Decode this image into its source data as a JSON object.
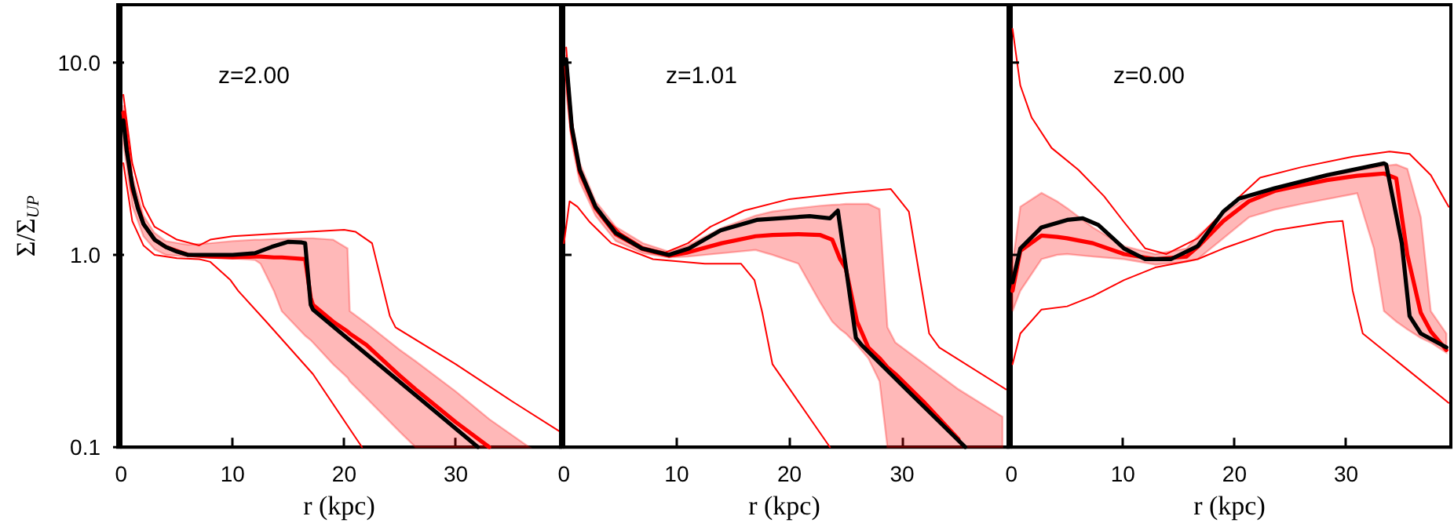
{
  "chart_data": [
    {
      "type": "line",
      "title": "z=2.00",
      "xlabel": "r (kpc)",
      "ylabel": "Σ/Σ$_{UP}$",
      "log": "y",
      "grid": false,
      "xlim": [
        -0.3,
        39.4
      ],
      "xticks": [
        0,
        10,
        20,
        30
      ],
      "ylim": [
        0.1,
        20
      ],
      "yticks": [
        0.1,
        {
          "value": 1,
          "label": "1.0"
        },
        {
          "value": 10,
          "label": "10.0"
        }
      ],
      "series": [
        {
          "color": "#ff0000",
          "x": [
            0.2,
            1,
            2,
            3,
            4,
            6,
            8,
            10,
            12,
            12.5,
            13.7,
            14.4,
            16.5,
            17,
            17.2,
            19,
            20.3,
            20.5,
            22,
            25,
            26.4,
            30,
            33,
            36.6
          ],
          "values": [
            5.5,
            2.2,
            1.45,
            1.2,
            1.1,
            1.0,
            0.98,
            0.97,
            0.98,
            0.98,
            0.97,
            0.97,
            0.95,
            0.6,
            0.55,
            0.45,
            0.4,
            0.39,
            0.34,
            0.235,
            0.2,
            0.135,
            0.1,
            null
          ],
          "lower": [
            3.8,
            1.8,
            1.25,
            1.07,
            1.0,
            0.98,
            0.97,
            0.96,
            0.94,
            0.9,
            0.65,
            0.51,
            0.38,
            0.36,
            0.35,
            0.27,
            0.23,
            0.22,
            0.18,
            0.12,
            0.1,
            0.1,
            0.1,
            0.1
          ],
          "upper": [
            6.0,
            2.6,
            1.6,
            1.3,
            1.18,
            1.13,
            1.15,
            1.18,
            1.2,
            1.2,
            1.21,
            1.21,
            1.22,
            1.22,
            1.22,
            1.2,
            1.08,
            0.51,
            0.44,
            0.32,
            0.28,
            0.195,
            0.14,
            0.1
          ]
        },
        {
          "color": "#000000",
          "x": [
            0.2,
            0.5,
            1,
            1.5,
            2,
            3,
            4,
            5,
            6,
            8,
            10,
            12,
            13.5,
            15,
            16.2,
            16.5,
            17,
            17.2,
            20,
            25,
            30,
            32
          ],
          "values": [
            5.0,
            3.5,
            2.3,
            1.75,
            1.45,
            1.2,
            1.1,
            1.04,
            1.0,
            1.0,
            1.0,
            1.02,
            1.1,
            1.17,
            1.16,
            1.15,
            0.55,
            0.52,
            0.38,
            0.218,
            0.125,
            0.1
          ]
        },
        {
          "color": "#ff0000",
          "x": [
            0.2,
            1,
            2,
            3,
            5,
            7,
            8,
            10,
            15,
            20,
            21,
            22.5,
            24.1,
            24.6,
            30,
            35,
            39.4
          ],
          "values": [
            6.8,
            3.0,
            1.8,
            1.4,
            1.2,
            1.12,
            1.2,
            1.25,
            1.3,
            1.35,
            1.32,
            1.15,
            0.48,
            0.42,
            0.27,
            0.174,
            0.12
          ]
        },
        {
          "color": "#ff0000",
          "x": [
            0.2,
            1,
            2,
            3,
            5,
            7,
            8,
            9.8,
            10.5,
            13,
            17.2,
            21.6
          ],
          "values": [
            3.0,
            1.5,
            1.12,
            1.0,
            0.96,
            0.95,
            0.92,
            0.74,
            0.65,
            0.45,
            0.24,
            0.1
          ]
        }
      ]
    },
    {
      "type": "line",
      "title": "z=1.01",
      "xlabel": "r (kpc)",
      "log": "y",
      "grid": false,
      "tick_labels": "x",
      "xlim": [
        -0.3,
        39.4
      ],
      "xticks": [
        0,
        10,
        20,
        30
      ],
      "ylim": [
        0.1,
        20
      ],
      "yticks": [
        0.1,
        1,
        10
      ],
      "series": [
        {
          "color": "#ff0000",
          "x": [
            0.2,
            0.7,
            1.4,
            2.8,
            4.6,
            7,
            9.3,
            11,
            14,
            17,
            18.5,
            20.8,
            22.7,
            23.8,
            24.5,
            25,
            26,
            27,
            28,
            28.7,
            29.4,
            32,
            35,
            38.9
          ],
          "values": [
            9.5,
            4.4,
            2.7,
            1.75,
            1.28,
            1.07,
            0.99,
            1.03,
            1.15,
            1.25,
            1.27,
            1.28,
            1.27,
            1.2,
            0.95,
            0.85,
            0.45,
            0.33,
            0.29,
            0.26,
            0.24,
            0.17,
            0.11,
            null
          ],
          "lower": [
            7,
            3.8,
            2.4,
            1.6,
            1.18,
            1.02,
            0.97,
            0.98,
            1.02,
            1.06,
            1.0,
            0.9,
            0.57,
            0.45,
            0.41,
            0.39,
            0.34,
            0.29,
            0.22,
            0.1,
            0.1,
            0.1,
            0.1,
            0.1
          ],
          "upper": [
            11,
            5,
            3.0,
            1.9,
            1.4,
            1.15,
            1.04,
            1.12,
            1.38,
            1.6,
            1.68,
            1.75,
            1.8,
            1.82,
            1.83,
            1.84,
            1.84,
            1.84,
            1.73,
            0.42,
            0.35,
            0.27,
            0.2,
            0.144
          ]
        },
        {
          "color": "#000000",
          "x": [
            0.2,
            0.7,
            1.4,
            2.8,
            4.6,
            6.9,
            9.3,
            11.1,
            13.9,
            17.1,
            21.8,
            23.6,
            24.3,
            25.9,
            26.4,
            30,
            35.6
          ],
          "values": [
            10.4,
            4.6,
            2.77,
            1.78,
            1.3,
            1.08,
            1.0,
            1.08,
            1.34,
            1.52,
            1.59,
            1.55,
            1.7,
            0.37,
            0.34,
            0.21,
            0.1
          ]
        },
        {
          "color": "#ff0000",
          "x": [
            0.2,
            0.7,
            1.5,
            3,
            5,
            7,
            9,
            11,
            13,
            16,
            20,
            25,
            29,
            30.6,
            32.4,
            33.3,
            39.2
          ],
          "values": [
            12,
            5,
            2.6,
            1.7,
            1.3,
            1.1,
            1.03,
            1.15,
            1.4,
            1.7,
            1.95,
            2.1,
            2.2,
            1.68,
            0.39,
            0.33,
            0.2
          ]
        },
        {
          "color": "#ff0000",
          "x": [
            0,
            0.5,
            1.2,
            2.3,
            4.2,
            7.9,
            12.5,
            15.7,
            16.9,
            17.6,
            18.5,
            23.6
          ],
          "values": [
            1.15,
            1.9,
            1.78,
            1.48,
            1.15,
            0.95,
            0.9,
            0.9,
            0.74,
            0.5,
            0.27,
            0.1
          ]
        }
      ]
    },
    {
      "type": "line",
      "title": "z=0.00",
      "xlabel": "r (kpc)",
      "log": "y",
      "grid": false,
      "tick_labels": "x",
      "xlim": [
        -0.3,
        39.4
      ],
      "xticks": [
        0,
        10,
        20,
        30
      ],
      "ylim": [
        0.1,
        20
      ],
      "yticks": [
        0.1,
        1,
        10
      ],
      "series": [
        {
          "color": "#ff0000",
          "x": [
            0.1,
            0.8,
            2.7,
            4.1,
            5,
            7.3,
            10.1,
            12.9,
            15.7,
            16.7,
            19,
            21.3,
            23.6,
            26,
            28.3,
            31,
            32.5,
            33.4,
            34.5,
            35.5,
            36.7,
            37.6,
            39
          ],
          "values": [
            0.65,
            1.05,
            1.26,
            1.24,
            1.22,
            1.15,
            1.01,
            0.95,
            0.98,
            1.1,
            1.5,
            1.9,
            2.15,
            2.3,
            2.45,
            2.58,
            2.62,
            2.65,
            2.5,
            1.0,
            0.5,
            0.4,
            0.32
          ],
          "lower": [
            0.51,
            0.65,
            0.95,
            1.0,
            1.01,
            0.98,
            0.95,
            0.89,
            0.92,
            0.95,
            1.22,
            1.57,
            1.72,
            1.84,
            1.95,
            2.09,
            1.08,
            0.51,
            0.45,
            0.41,
            0.37,
            0.35,
            0.31
          ],
          "upper": [
            0.9,
            1.78,
            2.1,
            1.9,
            1.75,
            1.39,
            1.11,
            1.01,
            1.08,
            1.25,
            1.65,
            2.02,
            2.22,
            2.37,
            2.55,
            2.75,
            2.85,
            2.9,
            2.95,
            2.8,
            1.57,
            0.51,
            0.39
          ]
        },
        {
          "color": "#000000",
          "x": [
            0.1,
            0.8,
            2.7,
            5,
            6.4,
            7.8,
            10.1,
            12,
            14.3,
            16.7,
            19,
            20.4,
            23.6,
            28.3,
            33.4,
            33.6,
            35,
            35.7,
            36.7,
            39
          ],
          "values": [
            0.72,
            1.08,
            1.39,
            1.52,
            1.55,
            1.43,
            1.08,
            0.95,
            0.95,
            1.11,
            1.68,
            1.96,
            2.22,
            2.6,
            2.99,
            2.95,
            1.15,
            0.48,
            0.39,
            0.33
          ]
        },
        {
          "color": "#ff0000",
          "x": [
            0.1,
            0.8,
            1.8,
            3.6,
            6,
            8.3,
            10.1,
            12,
            13.9,
            16.7,
            19,
            22.3,
            26,
            30.6,
            33.9,
            35.7,
            37.6,
            39.2
          ],
          "values": [
            15,
            7.6,
            5.2,
            3.6,
            2.77,
            2.02,
            1.48,
            1.08,
            1.01,
            1.22,
            1.68,
            2.52,
            2.86,
            3.24,
            3.45,
            3.35,
            2.6,
            1.78
          ]
        },
        {
          "color": "#ff0000",
          "x": [
            0.1,
            0.8,
            2.7,
            5,
            7.3,
            10.1,
            12.9,
            16.7,
            19,
            23.6,
            28.3,
            29.7,
            30.6,
            31.5,
            39.2
          ],
          "values": [
            0.27,
            0.39,
            0.52,
            0.54,
            0.61,
            0.74,
            0.86,
            0.95,
            1.08,
            1.34,
            1.48,
            1.5,
            0.65,
            0.39,
            0.17
          ]
        }
      ]
    }
  ]
}
